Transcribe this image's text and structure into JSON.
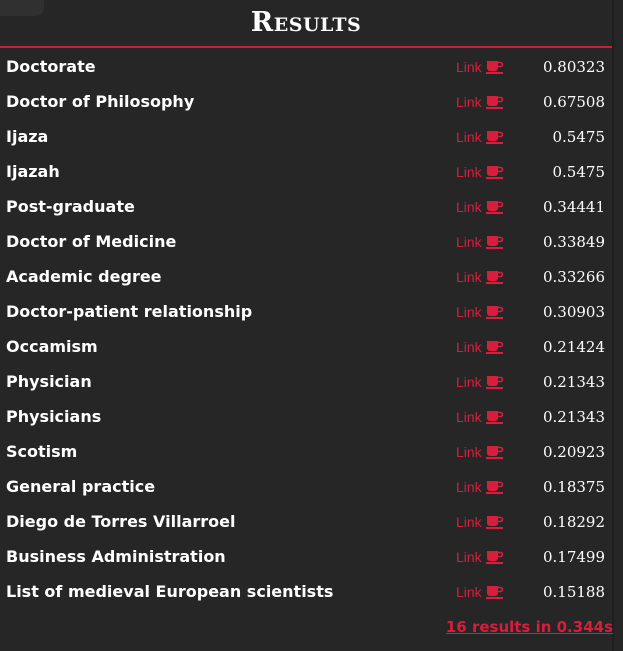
{
  "header": {
    "title": "Results"
  },
  "results": [
    {
      "name": "Doctorate",
      "link": "Link",
      "score": "0.80323"
    },
    {
      "name": "Doctor of Philosophy",
      "link": "Link",
      "score": "0.67508"
    },
    {
      "name": "Ijaza",
      "link": "Link",
      "score": "0.5475"
    },
    {
      "name": "Ijazah",
      "link": "Link",
      "score": "0.5475"
    },
    {
      "name": "Post-graduate",
      "link": "Link",
      "score": "0.34441"
    },
    {
      "name": "Doctor of Medicine",
      "link": "Link",
      "score": "0.33849"
    },
    {
      "name": "Academic degree",
      "link": "Link",
      "score": "0.33266"
    },
    {
      "name": "Doctor-patient relationship",
      "link": "Link",
      "score": "0.30903"
    },
    {
      "name": "Occamism",
      "link": "Link",
      "score": "0.21424"
    },
    {
      "name": "Physician",
      "link": "Link",
      "score": "0.21343"
    },
    {
      "name": "Physicians",
      "link": "Link",
      "score": "0.21343"
    },
    {
      "name": "Scotism",
      "link": "Link",
      "score": "0.20923"
    },
    {
      "name": "General practice",
      "link": "Link",
      "score": "0.18375"
    },
    {
      "name": "Diego de Torres Villarroel",
      "link": "Link",
      "score": "0.18292"
    },
    {
      "name": "Business Administration",
      "link": "Link",
      "score": "0.17499"
    },
    {
      "name": "List of medieval European scientists",
      "link": "Link",
      "score": "0.15188"
    }
  ],
  "footer": {
    "summary": "16 results in 0.344s"
  },
  "icons": {
    "link_icon": "coffee-cup-icon"
  },
  "colors": {
    "accent": "#d81e3c",
    "background": "#262626",
    "text": "#ffffff"
  }
}
